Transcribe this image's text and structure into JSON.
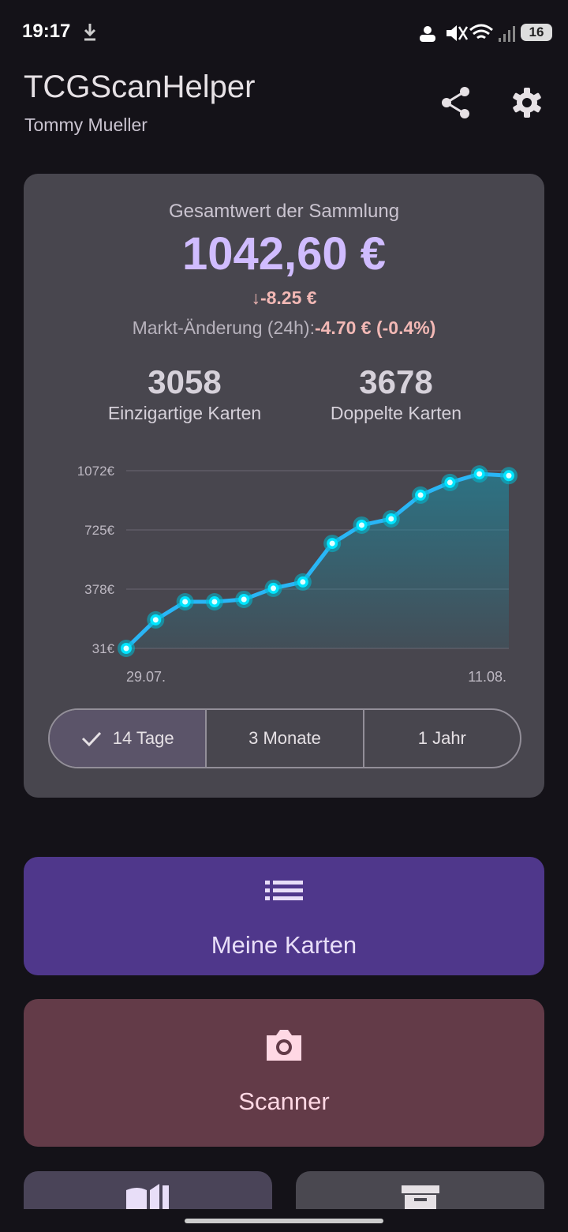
{
  "status_bar": {
    "time": "19:17",
    "battery": "16"
  },
  "header": {
    "title": "TCGScanHelper",
    "subtitle": "Tommy Mueller"
  },
  "summary": {
    "label": "Gesamtwert der Sammlung",
    "total": "1042,60 €",
    "change": "-8.25 €",
    "market_label": "Markt-Änderung (24h):",
    "market_value": "-4.70 € (-0.4%)",
    "stats": [
      {
        "value": 3058,
        "label": "Einzigartige Karten"
      },
      {
        "value": 3678,
        "label": "Doppelte Karten"
      }
    ]
  },
  "chart_data": {
    "type": "line",
    "categories": [
      "29.07.",
      null,
      null,
      null,
      null,
      null,
      null,
      null,
      null,
      null,
      null,
      null,
      null,
      "11.08."
    ],
    "series": [
      {
        "color": "#29b6f6",
        "values": [
          31,
          198,
          304,
          304,
          318,
          383,
          420,
          646,
          753,
          790,
          929,
          1003,
          1053,
          1043
        ]
      }
    ],
    "ylim": [
      31,
      1072
    ],
    "yticks": [
      {
        "value": 31,
        "label": "31€"
      },
      {
        "value": 378,
        "label": "378€"
      },
      {
        "value": 725,
        "label": "725€"
      },
      {
        "value": 1072,
        "label": "1072€"
      }
    ],
    "grid": true,
    "area": true
  },
  "range_buttons": {
    "options": [
      "14 Tage",
      "3 Monate",
      "1 Jahr"
    ],
    "selected": 0
  },
  "actions": [
    {
      "label": "Meine Karten"
    },
    {
      "label": "Scanner"
    }
  ]
}
